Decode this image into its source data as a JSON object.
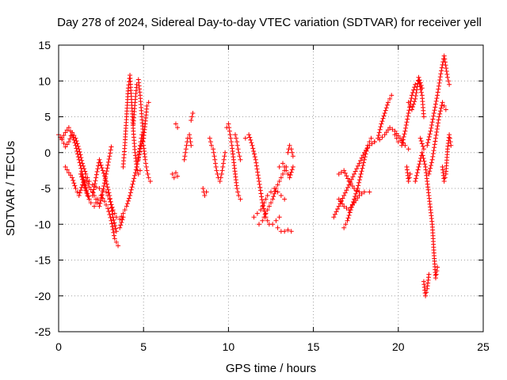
{
  "chart_data": {
    "type": "scatter",
    "title": "Day 278 of 2024, Sidereal Day-to-day VTEC variation (SDTVAR) for receiver yell",
    "xlabel": "GPS time / hours",
    "ylabel": "SDTVAR / TECUs",
    "xlim": [
      0,
      25
    ],
    "ylim": [
      -25,
      15
    ],
    "xticks": [
      0,
      5,
      10,
      15,
      20,
      25
    ],
    "yticks": [
      -25,
      -20,
      -15,
      -10,
      -5,
      0,
      5,
      10,
      15
    ],
    "grid": true,
    "marker": "plus",
    "color": "#ff0000",
    "series": [
      {
        "name": "s1",
        "points": [
          [
            0.0,
            2.5
          ],
          [
            0.2,
            1.8
          ],
          [
            0.4,
            0.8
          ],
          [
            0.6,
            1.5
          ],
          [
            0.8,
            2.8
          ],
          [
            1.0,
            2.0
          ],
          [
            1.2,
            0.5
          ],
          [
            1.4,
            -1.5
          ],
          [
            1.6,
            -3.0
          ],
          [
            1.8,
            -4.0
          ],
          [
            2.0,
            -4.5
          ],
          [
            2.2,
            -4.8
          ],
          [
            2.4,
            -5.0
          ],
          [
            2.6,
            -5.3
          ],
          [
            2.8,
            -5.5
          ],
          [
            3.0,
            -6.5
          ],
          [
            3.2,
            -8.0
          ],
          [
            3.4,
            -9.0
          ],
          [
            3.6,
            -9.3
          ],
          [
            3.8,
            -8.5
          ],
          [
            4.0,
            -7.5
          ],
          [
            4.2,
            -6.0
          ],
          [
            4.4,
            -4.0
          ],
          [
            4.6,
            -2.0
          ],
          [
            4.8,
            0.5
          ],
          [
            5.0,
            2.0
          ]
        ]
      },
      {
        "name": "s2",
        "points": [
          [
            0.2,
            2.0
          ],
          [
            0.4,
            2.8
          ],
          [
            0.6,
            3.5
          ],
          [
            0.8,
            2.5
          ],
          [
            1.0,
            1.0
          ],
          [
            1.2,
            -1.0
          ],
          [
            1.4,
            -3.0
          ],
          [
            1.6,
            -5.0
          ],
          [
            1.8,
            -6.5
          ],
          [
            2.0,
            -6.0
          ],
          [
            2.2,
            -3.5
          ],
          [
            2.4,
            -1.0
          ],
          [
            2.6,
            -2.5
          ],
          [
            2.8,
            -4.0
          ],
          [
            3.0,
            -6.0
          ],
          [
            3.2,
            -9.0
          ],
          [
            3.4,
            -11.0
          ],
          [
            3.6,
            -10.5
          ],
          [
            3.8,
            -9.0
          ]
        ]
      },
      {
        "name": "s3",
        "points": [
          [
            0.4,
            -2.0
          ],
          [
            0.6,
            -2.8
          ],
          [
            0.8,
            -3.5
          ],
          [
            1.0,
            -5.0
          ],
          [
            1.2,
            -6.0
          ],
          [
            1.4,
            -4.5
          ],
          [
            1.6,
            -3.5
          ],
          [
            1.8,
            -4.8
          ],
          [
            2.0,
            -5.5
          ],
          [
            2.2,
            -6.5
          ],
          [
            2.4,
            -7.5
          ],
          [
            2.6,
            -5.5
          ],
          [
            2.8,
            -3.0
          ],
          [
            3.0,
            -0.5
          ],
          [
            3.1,
            0.8
          ]
        ]
      },
      {
        "name": "s4",
        "points": [
          [
            1.3,
            -3.0
          ],
          [
            1.5,
            -4.5
          ],
          [
            1.7,
            -6.0
          ],
          [
            1.9,
            -7.0
          ],
          [
            2.1,
            -7.5
          ],
          [
            2.3,
            -6.5
          ],
          [
            2.5,
            -6.0
          ],
          [
            2.7,
            -6.8
          ],
          [
            2.9,
            -7.8
          ],
          [
            3.1,
            -9.5
          ],
          [
            3.3,
            -12.0
          ],
          [
            3.5,
            -13.0
          ]
        ]
      },
      {
        "name": "s5",
        "points": [
          [
            3.8,
            -2.0
          ],
          [
            3.9,
            1.0
          ],
          [
            4.0,
            5.0
          ],
          [
            4.1,
            9.0
          ],
          [
            4.2,
            10.8
          ],
          [
            4.3,
            7.0
          ],
          [
            4.4,
            3.0
          ],
          [
            4.5,
            0.0
          ],
          [
            4.6,
            -2.0
          ],
          [
            4.7,
            -3.0
          ],
          [
            4.8,
            -2.5
          ]
        ]
      },
      {
        "name": "s6",
        "points": [
          [
            4.4,
            4.0
          ],
          [
            4.5,
            7.0
          ],
          [
            4.6,
            9.5
          ],
          [
            4.7,
            10.2
          ],
          [
            4.8,
            8.0
          ],
          [
            4.9,
            5.0
          ],
          [
            5.0,
            2.0
          ],
          [
            5.1,
            4.0
          ],
          [
            5.2,
            6.5
          ],
          [
            5.3,
            7.0
          ]
        ]
      },
      {
        "name": "s7",
        "points": [
          [
            4.7,
            -1.0
          ],
          [
            4.8,
            1.0
          ],
          [
            4.9,
            2.5
          ],
          [
            5.0,
            1.0
          ],
          [
            5.1,
            -1.0
          ],
          [
            5.2,
            -2.5
          ],
          [
            5.3,
            -3.5
          ],
          [
            5.4,
            -4.0
          ]
        ]
      },
      {
        "name": "s8",
        "points": [
          [
            6.7,
            -3.0
          ],
          [
            6.8,
            -3.5
          ],
          [
            6.9,
            -2.8
          ],
          [
            7.0,
            -3.3
          ]
        ]
      },
      {
        "name": "s9",
        "points": [
          [
            6.9,
            4.0
          ],
          [
            7.0,
            3.5
          ]
        ]
      },
      {
        "name": "s10",
        "points": [
          [
            7.4,
            -1.0
          ],
          [
            7.5,
            0.5
          ],
          [
            7.6,
            2.0
          ],
          [
            7.7,
            2.5
          ],
          [
            7.8,
            1.0
          ]
        ]
      },
      {
        "name": "s11",
        "points": [
          [
            7.8,
            4.5
          ],
          [
            7.9,
            5.5
          ]
        ]
      },
      {
        "name": "s12",
        "points": [
          [
            8.5,
            -5.0
          ],
          [
            8.6,
            -6.0
          ],
          [
            8.7,
            -5.5
          ]
        ]
      },
      {
        "name": "s13",
        "points": [
          [
            8.9,
            2.0
          ],
          [
            9.0,
            1.0
          ],
          [
            9.1,
            0.5
          ],
          [
            9.2,
            -1.0
          ],
          [
            9.3,
            -2.5
          ],
          [
            9.4,
            -3.5
          ],
          [
            9.5,
            -4.0
          ],
          [
            9.6,
            -3.0
          ],
          [
            9.7,
            -1.5
          ],
          [
            9.8,
            0.0
          ]
        ]
      },
      {
        "name": "s14",
        "points": [
          [
            9.9,
            3.5
          ],
          [
            10.0,
            4.0
          ],
          [
            10.1,
            2.5
          ],
          [
            10.2,
            1.0
          ],
          [
            10.3,
            -1.0
          ],
          [
            10.4,
            -3.0
          ],
          [
            10.5,
            -5.0
          ],
          [
            10.6,
            -6.0
          ],
          [
            10.7,
            -6.5
          ]
        ]
      },
      {
        "name": "s15",
        "points": [
          [
            10.4,
            2.5
          ],
          [
            10.5,
            1.5
          ],
          [
            10.6,
            0.0
          ],
          [
            10.7,
            -1.0
          ]
        ]
      },
      {
        "name": "s16",
        "points": [
          [
            11.0,
            2.0
          ],
          [
            11.2,
            2.5
          ],
          [
            11.4,
            1.0
          ],
          [
            11.6,
            -1.0
          ],
          [
            11.8,
            -4.0
          ],
          [
            12.0,
            -7.0
          ],
          [
            12.2,
            -9.0
          ],
          [
            12.4,
            -10.0
          ],
          [
            12.6,
            -10.0
          ],
          [
            12.8,
            -9.5
          ],
          [
            13.0,
            -9.0
          ]
        ]
      },
      {
        "name": "s17",
        "points": [
          [
            11.5,
            -9.0
          ],
          [
            11.7,
            -8.5
          ],
          [
            11.9,
            -8.0
          ],
          [
            12.1,
            -7.0
          ],
          [
            12.3,
            -6.0
          ],
          [
            12.5,
            -5.5
          ],
          [
            12.7,
            -5.0
          ],
          [
            12.9,
            -5.5
          ],
          [
            13.1,
            -6.0
          ],
          [
            13.3,
            -6.5
          ]
        ]
      },
      {
        "name": "s18",
        "points": [
          [
            11.8,
            -10.0
          ],
          [
            12.0,
            -9.5
          ],
          [
            12.2,
            -8.5
          ],
          [
            12.4,
            -7.5
          ],
          [
            12.6,
            -6.5
          ],
          [
            12.8,
            -5.0
          ],
          [
            13.0,
            -4.0
          ],
          [
            13.2,
            -3.0
          ],
          [
            13.4,
            -2.0
          ]
        ]
      },
      {
        "name": "s19",
        "points": [
          [
            12.9,
            -10.5
          ],
          [
            13.1,
            -11.0
          ],
          [
            13.3,
            -11.0
          ],
          [
            13.5,
            -10.8
          ],
          [
            13.7,
            -11.0
          ]
        ]
      },
      {
        "name": "s20",
        "points": [
          [
            13.5,
            0.0
          ],
          [
            13.6,
            1.0
          ],
          [
            13.7,
            0.5
          ],
          [
            13.8,
            -0.5
          ]
        ]
      },
      {
        "name": "s21",
        "points": [
          [
            13.0,
            -2.0
          ],
          [
            13.2,
            -1.5
          ],
          [
            13.4,
            -2.5
          ],
          [
            13.6,
            -3.5
          ],
          [
            13.8,
            -2.0
          ]
        ]
      },
      {
        "name": "s22",
        "points": [
          [
            16.2,
            -9.0
          ],
          [
            16.5,
            -7.5
          ],
          [
            16.8,
            -6.0
          ],
          [
            17.1,
            -4.5
          ],
          [
            17.4,
            -3.0
          ],
          [
            17.7,
            -1.5
          ],
          [
            18.0,
            0.0
          ],
          [
            18.3,
            1.0
          ],
          [
            18.6,
            1.5
          ],
          [
            18.9,
            1.8
          ],
          [
            19.2,
            2.5
          ],
          [
            19.5,
            3.5
          ],
          [
            19.8,
            3.0
          ],
          [
            20.1,
            2.0
          ],
          [
            20.4,
            1.0
          ],
          [
            20.6,
            0.5
          ]
        ]
      },
      {
        "name": "s23",
        "points": [
          [
            16.5,
            -6.5
          ],
          [
            16.8,
            -7.5
          ],
          [
            17.1,
            -8.0
          ],
          [
            17.4,
            -7.0
          ],
          [
            17.7,
            -6.0
          ],
          [
            18.0,
            -5.5
          ],
          [
            18.3,
            -5.5
          ]
        ]
      },
      {
        "name": "s24",
        "points": [
          [
            16.8,
            -10.5
          ],
          [
            17.0,
            -9.5
          ],
          [
            17.2,
            -8.0
          ],
          [
            17.4,
            -6.5
          ],
          [
            17.6,
            -5.0
          ],
          [
            17.8,
            -3.0
          ],
          [
            18.0,
            -1.0
          ],
          [
            18.2,
            1.0
          ],
          [
            18.4,
            2.0
          ],
          [
            18.6,
            1.5
          ]
        ]
      },
      {
        "name": "s25",
        "points": [
          [
            18.8,
            2.0
          ],
          [
            19.0,
            4.0
          ],
          [
            19.2,
            5.5
          ],
          [
            19.4,
            7.0
          ],
          [
            19.6,
            8.0
          ]
        ]
      },
      {
        "name": "s26",
        "points": [
          [
            16.5,
            -3.0
          ],
          [
            16.8,
            -2.5
          ],
          [
            17.1,
            -4.0
          ],
          [
            17.4,
            -5.0
          ],
          [
            17.7,
            -5.5
          ]
        ]
      },
      {
        "name": "s27",
        "points": [
          [
            19.8,
            2.5
          ],
          [
            20.0,
            1.5
          ],
          [
            20.2,
            1.0
          ],
          [
            20.4,
            3.0
          ],
          [
            20.6,
            5.5
          ],
          [
            20.8,
            8.0
          ],
          [
            21.0,
            9.5
          ],
          [
            21.2,
            10.0
          ],
          [
            21.4,
            8.0
          ],
          [
            21.5,
            5.0
          ]
        ]
      },
      {
        "name": "s28",
        "points": [
          [
            20.6,
            7.0
          ],
          [
            20.8,
            6.0
          ],
          [
            21.0,
            7.5
          ],
          [
            21.2,
            10.5
          ],
          [
            21.4,
            9.0
          ]
        ]
      },
      {
        "name": "s29",
        "points": [
          [
            21.0,
            -4.0
          ],
          [
            21.2,
            -2.0
          ],
          [
            21.4,
            0.0
          ],
          [
            21.6,
            -2.0
          ],
          [
            21.8,
            -6.0
          ],
          [
            22.0,
            -10.0
          ],
          [
            22.1,
            -14.0
          ],
          [
            22.2,
            -17.5
          ],
          [
            22.3,
            -16.0
          ]
        ]
      },
      {
        "name": "s30",
        "points": [
          [
            21.5,
            -18.0
          ],
          [
            21.6,
            -20.0
          ],
          [
            21.7,
            -19.0
          ],
          [
            21.8,
            -17.0
          ]
        ]
      },
      {
        "name": "s31",
        "points": [
          [
            21.3,
            2.0
          ],
          [
            21.5,
            0.5
          ],
          [
            21.7,
            1.0
          ],
          [
            21.9,
            3.0
          ],
          [
            22.1,
            5.5
          ],
          [
            22.3,
            8.0
          ],
          [
            22.5,
            11.0
          ],
          [
            22.7,
            13.5
          ],
          [
            22.9,
            10.5
          ],
          [
            23.0,
            9.5
          ]
        ]
      },
      {
        "name": "s32",
        "points": [
          [
            21.8,
            -3.0
          ],
          [
            22.0,
            -1.0
          ],
          [
            22.2,
            2.0
          ],
          [
            22.4,
            5.0
          ],
          [
            22.6,
            7.0
          ],
          [
            22.8,
            6.0
          ]
        ]
      },
      {
        "name": "s33",
        "points": [
          [
            22.6,
            -2.0
          ],
          [
            22.7,
            -4.0
          ],
          [
            22.8,
            -3.0
          ],
          [
            22.9,
            0.5
          ],
          [
            23.0,
            2.5
          ],
          [
            23.1,
            1.0
          ]
        ]
      },
      {
        "name": "s34",
        "points": [
          [
            20.5,
            -2.0
          ],
          [
            20.6,
            -4.0
          ],
          [
            20.7,
            -3.0
          ]
        ]
      }
    ]
  }
}
